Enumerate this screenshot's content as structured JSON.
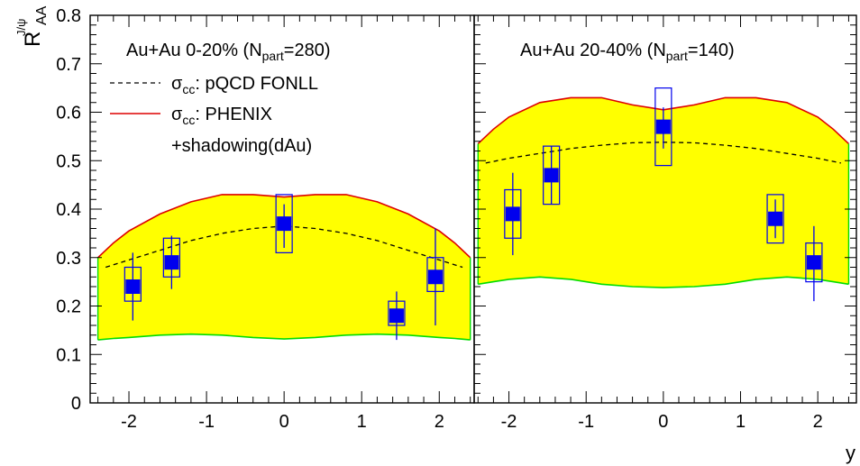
{
  "y_axis_label": "R",
  "y_axis_label_sub": "AA",
  "y_axis_label_sup": "J/ψ",
  "x_axis_label": "y",
  "legend": {
    "fonll_sigma": "σ",
    "fonll_sub": "cc",
    "fonll_text": ": pQCD FONLL",
    "phenix_sigma": "σ",
    "phenix_sub": "cc",
    "phenix_text": ": PHENIX",
    "shadowing_text": "+shadowing(dAu)"
  },
  "colors": {
    "band_fill": "#ffff00",
    "band_upper": "#dd0000",
    "band_lower": "#00dd00",
    "data_marker": "#0000ee",
    "syst_box": "#0000ee",
    "fonll_line": "#000000"
  },
  "chart_data": [
    {
      "type": "scatter",
      "panel": "left",
      "title_prefix": "Au+Au 0-20% (N",
      "title_sub": "part",
      "title_suffix": "=280)",
      "xlim": [
        -2.5,
        2.45
      ],
      "ylim": [
        0,
        0.8
      ],
      "x_ticks": [
        -2,
        -1,
        0,
        1,
        2
      ],
      "x_tick_labels": [
        "-2",
        "-1",
        "0",
        "1",
        "2"
      ],
      "y_ticks": [
        0,
        0.1,
        0.2,
        0.3,
        0.4,
        0.5,
        0.6,
        0.7,
        0.8
      ],
      "y_tick_labels": [
        "0",
        "0.1",
        "0.2",
        "0.3",
        "0.4",
        "0.5",
        "0.6",
        "0.7",
        "0.8"
      ],
      "points": [
        {
          "x": -1.95,
          "y": 0.24,
          "stat_lo": 0.17,
          "stat_hi": 0.31,
          "sys_lo": 0.21,
          "sys_hi": 0.28
        },
        {
          "x": -1.45,
          "y": 0.29,
          "stat_lo": 0.235,
          "stat_hi": 0.345,
          "sys_lo": 0.26,
          "sys_hi": 0.34
        },
        {
          "x": 0.0,
          "y": 0.37,
          "stat_lo": 0.32,
          "stat_hi": 0.41,
          "sys_lo": 0.31,
          "sys_hi": 0.43
        },
        {
          "x": 1.45,
          "y": 0.18,
          "stat_lo": 0.13,
          "stat_hi": 0.23,
          "sys_lo": 0.16,
          "sys_hi": 0.21
        },
        {
          "x": 1.95,
          "y": 0.26,
          "stat_lo": 0.16,
          "stat_hi": 0.36,
          "sys_lo": 0.23,
          "sys_hi": 0.3
        }
      ],
      "band_x": [
        -2.4,
        -2.2,
        -2.0,
        -1.6,
        -1.2,
        -0.8,
        -0.4,
        0.0,
        0.4,
        0.8,
        1.2,
        1.6,
        2.0,
        2.2,
        2.4
      ],
      "band_upper": [
        0.3,
        0.33,
        0.355,
        0.39,
        0.415,
        0.43,
        0.43,
        0.425,
        0.43,
        0.43,
        0.415,
        0.39,
        0.355,
        0.33,
        0.3
      ],
      "band_lower": [
        0.13,
        0.133,
        0.135,
        0.14,
        0.142,
        0.14,
        0.135,
        0.132,
        0.135,
        0.14,
        0.142,
        0.14,
        0.135,
        0.133,
        0.13
      ],
      "fonll_x": [
        -2.3,
        -2.0,
        -1.6,
        -1.2,
        -0.8,
        -0.4,
        0.0,
        0.4,
        0.8,
        1.2,
        1.6,
        2.0,
        2.3
      ],
      "fonll_y": [
        0.28,
        0.295,
        0.315,
        0.335,
        0.35,
        0.36,
        0.365,
        0.36,
        0.35,
        0.335,
        0.315,
        0.295,
        0.28
      ]
    },
    {
      "type": "scatter",
      "panel": "right",
      "title_prefix": "Au+Au 20-40% (N",
      "title_sub": "part",
      "title_suffix": "=140)",
      "xlim": [
        -2.45,
        2.5
      ],
      "ylim": [
        0,
        0.8
      ],
      "x_ticks": [
        -2,
        -1,
        0,
        1,
        2
      ],
      "x_tick_labels": [
        "-2",
        "-1",
        "0",
        "1",
        "2"
      ],
      "points": [
        {
          "x": -1.95,
          "y": 0.39,
          "stat_lo": 0.305,
          "stat_hi": 0.475,
          "sys_lo": 0.34,
          "sys_hi": 0.44
        },
        {
          "x": -1.45,
          "y": 0.47,
          "stat_lo": 0.41,
          "stat_hi": 0.53,
          "sys_lo": 0.41,
          "sys_hi": 0.53
        },
        {
          "x": 0.0,
          "y": 0.57,
          "stat_lo": 0.525,
          "stat_hi": 0.61,
          "sys_lo": 0.49,
          "sys_hi": 0.65
        },
        {
          "x": 1.45,
          "y": 0.38,
          "stat_lo": 0.34,
          "stat_hi": 0.42,
          "sys_lo": 0.33,
          "sys_hi": 0.43
        },
        {
          "x": 1.95,
          "y": 0.29,
          "stat_lo": 0.21,
          "stat_hi": 0.365,
          "sys_lo": 0.25,
          "sys_hi": 0.33
        }
      ],
      "band_x": [
        -2.4,
        -2.2,
        -2.0,
        -1.6,
        -1.2,
        -0.8,
        -0.4,
        0.0,
        0.4,
        0.8,
        1.2,
        1.6,
        2.0,
        2.2,
        2.4
      ],
      "band_upper": [
        0.535,
        0.565,
        0.59,
        0.62,
        0.63,
        0.63,
        0.615,
        0.605,
        0.615,
        0.63,
        0.63,
        0.62,
        0.59,
        0.565,
        0.535
      ],
      "band_lower": [
        0.245,
        0.25,
        0.255,
        0.26,
        0.255,
        0.245,
        0.24,
        0.238,
        0.24,
        0.245,
        0.255,
        0.26,
        0.255,
        0.25,
        0.245
      ],
      "fonll_x": [
        -2.3,
        -2.0,
        -1.6,
        -1.2,
        -0.8,
        -0.4,
        0.0,
        0.4,
        0.8,
        1.2,
        1.6,
        2.0,
        2.3
      ],
      "fonll_y": [
        0.495,
        0.505,
        0.515,
        0.525,
        0.532,
        0.537,
        0.538,
        0.537,
        0.532,
        0.525,
        0.515,
        0.505,
        0.495
      ]
    }
  ]
}
